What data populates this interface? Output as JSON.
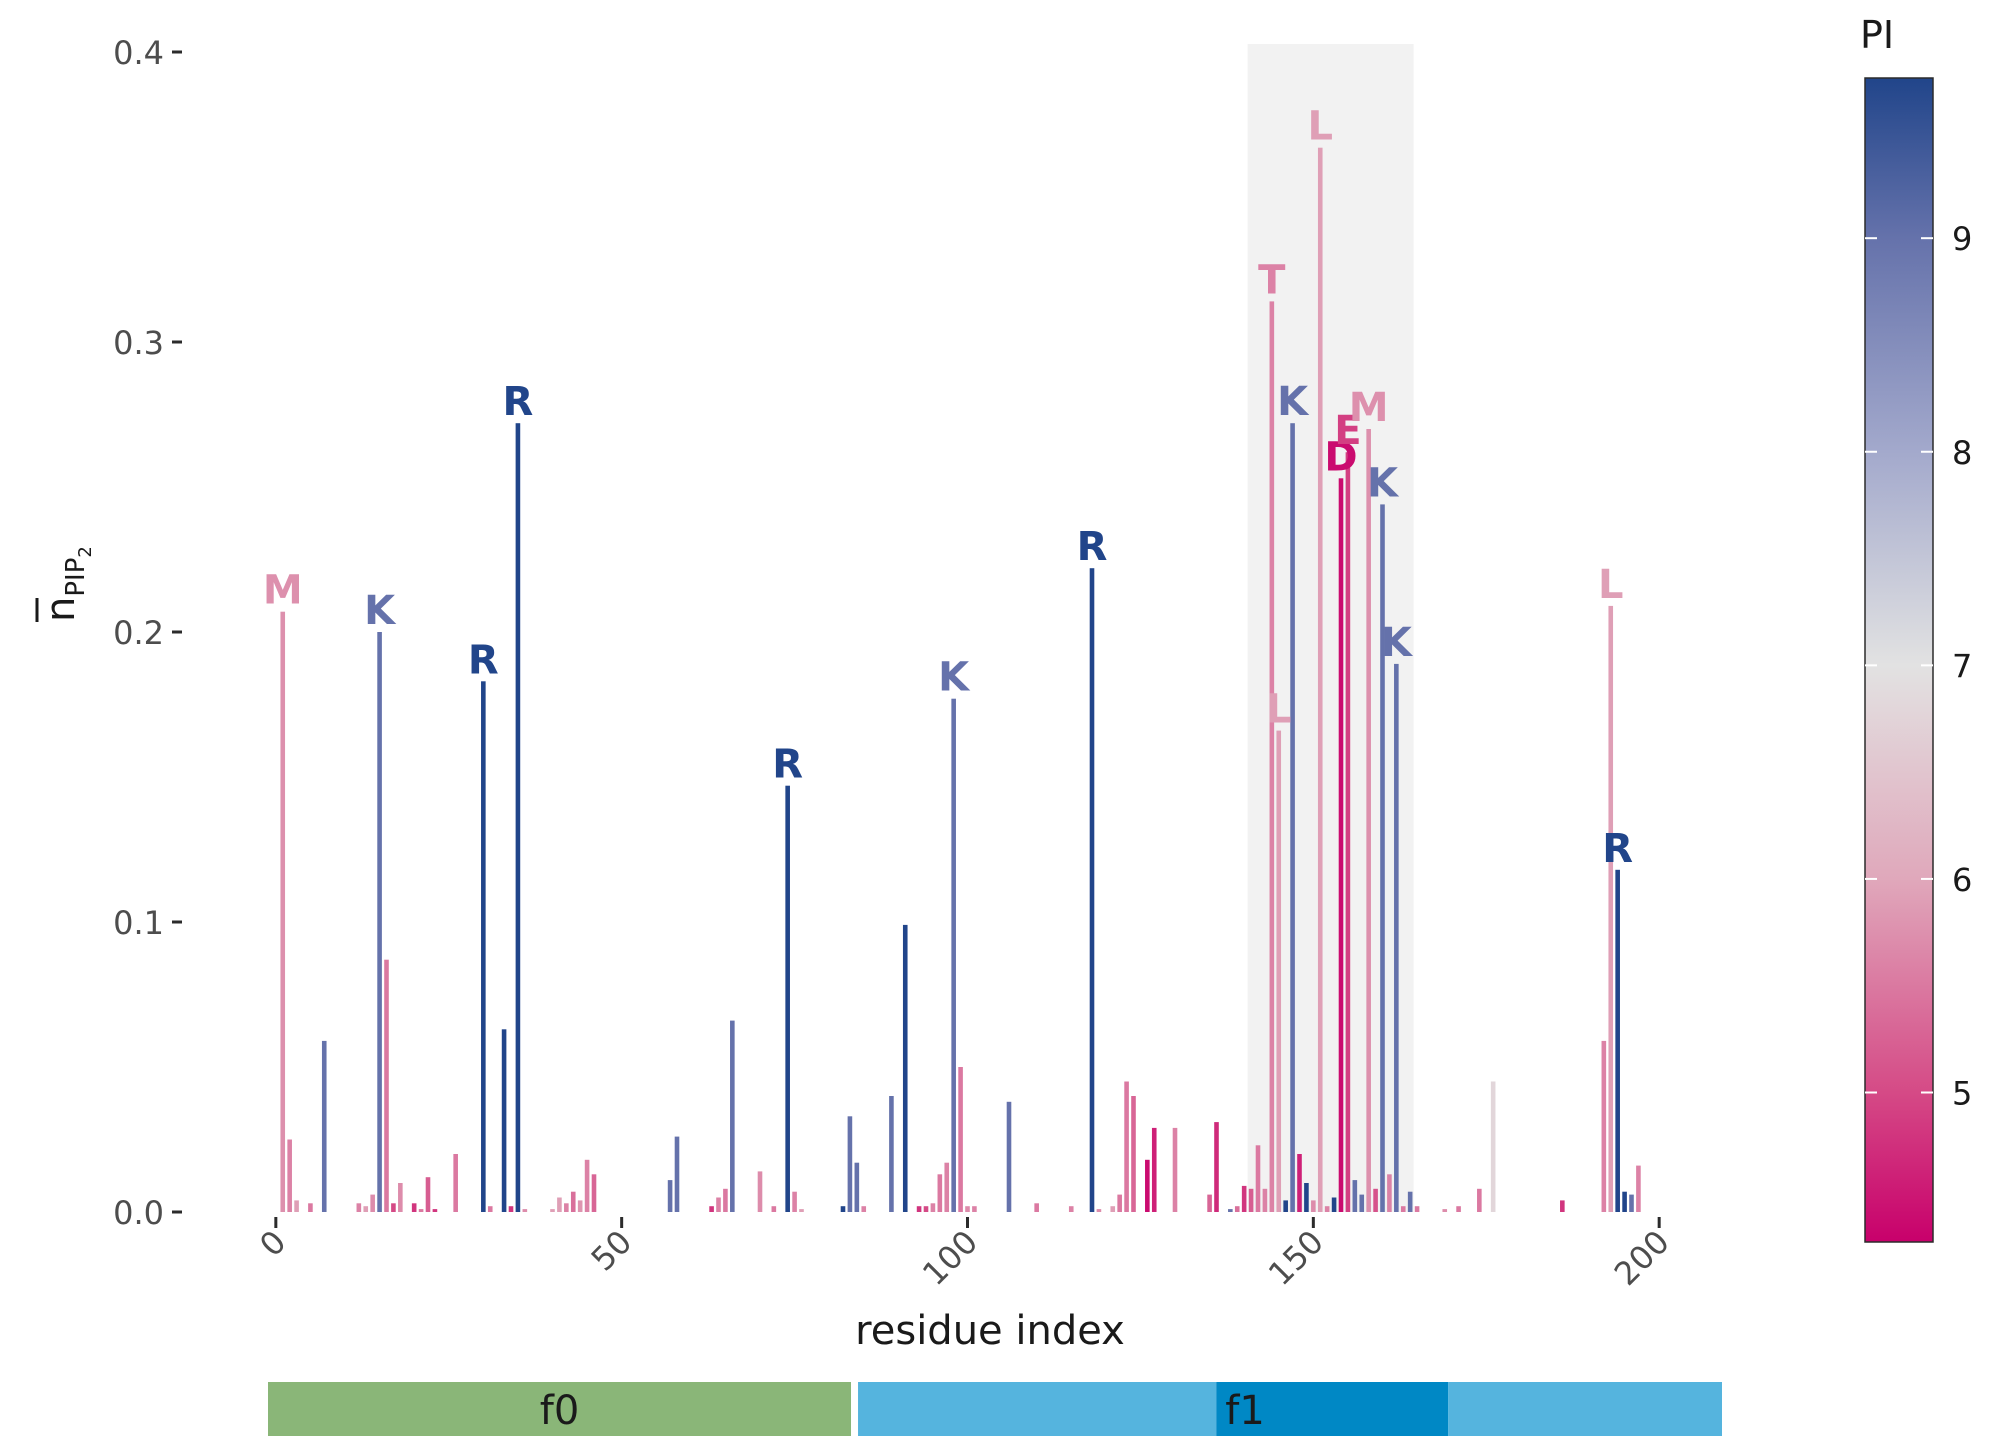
{
  "chart_data": {
    "type": "bar",
    "xlabel": "residue index",
    "ylabel_main": "n",
    "ylabel_sub1": "PIP",
    "ylabel_sub2": "2",
    "xlim": [
      -2,
      202
    ],
    "ylim": [
      0,
      0.4
    ],
    "xticks": [
      0,
      50,
      100,
      150,
      200
    ],
    "yticks": [
      0.0,
      0.1,
      0.2,
      0.3,
      0.4
    ],
    "ytick_labels": [
      "0.0",
      "0.1",
      "0.2",
      "0.3",
      "0.4"
    ],
    "highlight_region": [
      140.5,
      164.5
    ],
    "colorbar": {
      "title": "PI",
      "min": 4.3,
      "max": 9.75,
      "ticks": [
        5,
        6,
        7,
        8,
        9
      ],
      "tick_labels": [
        "5",
        "6",
        "7",
        "8",
        "9"
      ],
      "stops": [
        {
          "v": 4.3,
          "color": "#c8006b"
        },
        {
          "v": 5.0,
          "color": "#d54a86"
        },
        {
          "v": 6.0,
          "color": "#e0a8bb"
        },
        {
          "v": 7.0,
          "color": "#e2e2e2"
        },
        {
          "v": 8.0,
          "color": "#a3a9cc"
        },
        {
          "v": 9.0,
          "color": "#6572ab"
        },
        {
          "v": 9.75,
          "color": "#21458a"
        }
      ]
    },
    "bars": [
      {
        "x": 1,
        "y": 0.207,
        "pi": 5.74,
        "label": "M"
      },
      {
        "x": 2,
        "y": 0.025,
        "pi": 5.6
      },
      {
        "x": 3,
        "y": 0.004,
        "pi": 5.9
      },
      {
        "x": 5,
        "y": 0.003,
        "pi": 5.5
      },
      {
        "x": 7,
        "y": 0.059,
        "pi": 9.0
      },
      {
        "x": 12,
        "y": 0.003,
        "pi": 5.6
      },
      {
        "x": 13,
        "y": 0.002,
        "pi": 5.9
      },
      {
        "x": 14,
        "y": 0.006,
        "pi": 5.7
      },
      {
        "x": 15,
        "y": 0.2,
        "pi": 9.0,
        "label": "K"
      },
      {
        "x": 16,
        "y": 0.087,
        "pi": 5.5
      },
      {
        "x": 17,
        "y": 0.003,
        "pi": 5.0
      },
      {
        "x": 18,
        "y": 0.01,
        "pi": 5.7
      },
      {
        "x": 20,
        "y": 0.003,
        "pi": 4.8
      },
      {
        "x": 21,
        "y": 0.001,
        "pi": 5.5
      },
      {
        "x": 22,
        "y": 0.012,
        "pi": 5.2
      },
      {
        "x": 23,
        "y": 0.001,
        "pi": 4.8
      },
      {
        "x": 26,
        "y": 0.02,
        "pi": 5.5
      },
      {
        "x": 30,
        "y": 0.183,
        "pi": 9.75,
        "label": "R"
      },
      {
        "x": 31,
        "y": 0.002,
        "pi": 5.5
      },
      {
        "x": 33,
        "y": 0.063,
        "pi": 9.75
      },
      {
        "x": 34,
        "y": 0.002,
        "pi": 4.8
      },
      {
        "x": 35,
        "y": 0.272,
        "pi": 9.75,
        "label": "R"
      },
      {
        "x": 36,
        "y": 0.001,
        "pi": 5.7
      },
      {
        "x": 40,
        "y": 0.001,
        "pi": 5.9
      },
      {
        "x": 41,
        "y": 0.005,
        "pi": 5.9
      },
      {
        "x": 42,
        "y": 0.003,
        "pi": 5.6
      },
      {
        "x": 43,
        "y": 0.007,
        "pi": 5.4
      },
      {
        "x": 44,
        "y": 0.004,
        "pi": 5.8
      },
      {
        "x": 45,
        "y": 0.018,
        "pi": 5.6
      },
      {
        "x": 46,
        "y": 0.013,
        "pi": 5.3
      },
      {
        "x": 57,
        "y": 0.011,
        "pi": 9.0
      },
      {
        "x": 58,
        "y": 0.026,
        "pi": 9.0
      },
      {
        "x": 66,
        "y": 0.066,
        "pi": 9.0
      },
      {
        "x": 63,
        "y": 0.002,
        "pi": 4.8
      },
      {
        "x": 64,
        "y": 0.005,
        "pi": 5.6
      },
      {
        "x": 65,
        "y": 0.008,
        "pi": 5.5
      },
      {
        "x": 70,
        "y": 0.014,
        "pi": 5.7
      },
      {
        "x": 72,
        "y": 0.002,
        "pi": 5.5
      },
      {
        "x": 74,
        "y": 0.147,
        "pi": 9.75,
        "label": "R"
      },
      {
        "x": 75,
        "y": 0.007,
        "pi": 5.6
      },
      {
        "x": 76,
        "y": 0.001,
        "pi": 5.9
      },
      {
        "x": 82,
        "y": 0.002,
        "pi": 9.75
      },
      {
        "x": 83,
        "y": 0.033,
        "pi": 9.0
      },
      {
        "x": 84,
        "y": 0.017,
        "pi": 9.0
      },
      {
        "x": 85,
        "y": 0.002,
        "pi": 5.6
      },
      {
        "x": 89,
        "y": 0.04,
        "pi": 9.0
      },
      {
        "x": 91,
        "y": 0.099,
        "pi": 9.75
      },
      {
        "x": 93,
        "y": 0.002,
        "pi": 4.8
      },
      {
        "x": 94,
        "y": 0.002,
        "pi": 5.0
      },
      {
        "x": 95,
        "y": 0.003,
        "pi": 5.6
      },
      {
        "x": 96,
        "y": 0.013,
        "pi": 5.5
      },
      {
        "x": 97,
        "y": 0.017,
        "pi": 5.6
      },
      {
        "x": 98,
        "y": 0.177,
        "pi": 9.0,
        "label": "K"
      },
      {
        "x": 99,
        "y": 0.05,
        "pi": 5.5
      },
      {
        "x": 100,
        "y": 0.002,
        "pi": 5.7
      },
      {
        "x": 101,
        "y": 0.002,
        "pi": 5.6
      },
      {
        "x": 106,
        "y": 0.038,
        "pi": 9.0
      },
      {
        "x": 110,
        "y": 0.003,
        "pi": 5.5
      },
      {
        "x": 115,
        "y": 0.002,
        "pi": 5.6
      },
      {
        "x": 118,
        "y": 0.222,
        "pi": 9.75,
        "label": "R"
      },
      {
        "x": 119,
        "y": 0.001,
        "pi": 5.7
      },
      {
        "x": 121,
        "y": 0.002,
        "pi": 5.9
      },
      {
        "x": 122,
        "y": 0.006,
        "pi": 5.5
      },
      {
        "x": 123,
        "y": 0.045,
        "pi": 5.5
      },
      {
        "x": 124,
        "y": 0.04,
        "pi": 5.3
      },
      {
        "x": 126,
        "y": 0.018,
        "pi": 4.4
      },
      {
        "x": 127,
        "y": 0.029,
        "pi": 4.6
      },
      {
        "x": 130,
        "y": 0.029,
        "pi": 5.6
      },
      {
        "x": 135,
        "y": 0.006,
        "pi": 5.3
      },
      {
        "x": 136,
        "y": 0.031,
        "pi": 4.7
      },
      {
        "x": 138,
        "y": 0.001,
        "pi": 9.0
      },
      {
        "x": 139,
        "y": 0.002,
        "pi": 5.4
      },
      {
        "x": 140,
        "y": 0.009,
        "pi": 4.8
      },
      {
        "x": 141,
        "y": 0.008,
        "pi": 5.2
      },
      {
        "x": 142,
        "y": 0.023,
        "pi": 5.5
      },
      {
        "x": 143,
        "y": 0.008,
        "pi": 5.6
      },
      {
        "x": 144,
        "y": 0.314,
        "pi": 5.6,
        "label": "T"
      },
      {
        "x": 145,
        "y": 0.166,
        "pi": 5.9,
        "label": "L"
      },
      {
        "x": 146,
        "y": 0.004,
        "pi": 9.75
      },
      {
        "x": 147,
        "y": 0.272,
        "pi": 9.0,
        "label": "K"
      },
      {
        "x": 148,
        "y": 0.02,
        "pi": 4.6
      },
      {
        "x": 149,
        "y": 0.01,
        "pi": 9.75
      },
      {
        "x": 150,
        "y": 0.004,
        "pi": 5.7
      },
      {
        "x": 151,
        "y": 0.367,
        "pi": 5.9,
        "label": "L"
      },
      {
        "x": 152,
        "y": 0.002,
        "pi": 5.6
      },
      {
        "x": 153,
        "y": 0.005,
        "pi": 9.75
      },
      {
        "x": 154,
        "y": 0.253,
        "pi": 4.4,
        "label": "D"
      },
      {
        "x": 155,
        "y": 0.262,
        "pi": 4.9,
        "label": "E"
      },
      {
        "x": 156,
        "y": 0.011,
        "pi": 9.0
      },
      {
        "x": 157,
        "y": 0.006,
        "pi": 9.0
      },
      {
        "x": 158,
        "y": 0.27,
        "pi": 5.74,
        "label": "M"
      },
      {
        "x": 159,
        "y": 0.008,
        "pi": 5.1
      },
      {
        "x": 160,
        "y": 0.244,
        "pi": 9.0,
        "label": "K"
      },
      {
        "x": 161,
        "y": 0.013,
        "pi": 5.6
      },
      {
        "x": 162,
        "y": 0.189,
        "pi": 9.0,
        "label": "K"
      },
      {
        "x": 163,
        "y": 0.002,
        "pi": 5.5
      },
      {
        "x": 164,
        "y": 0.007,
        "pi": 9.0
      },
      {
        "x": 165,
        "y": 0.002,
        "pi": 5.5
      },
      {
        "x": 169,
        "y": 0.001,
        "pi": 5.7
      },
      {
        "x": 171,
        "y": 0.002,
        "pi": 5.5
      },
      {
        "x": 174,
        "y": 0.008,
        "pi": 5.5
      },
      {
        "x": 176,
        "y": 0.045,
        "pi": 6.8
      },
      {
        "x": 186,
        "y": 0.004,
        "pi": 4.8
      },
      {
        "x": 192,
        "y": 0.059,
        "pi": 5.6
      },
      {
        "x": 193,
        "y": 0.209,
        "pi": 5.9,
        "label": "L"
      },
      {
        "x": 194,
        "y": 0.118,
        "pi": 9.75,
        "label": "R"
      },
      {
        "x": 195,
        "y": 0.007,
        "pi": 9.75
      },
      {
        "x": 196,
        "y": 0.006,
        "pi": 9.0
      },
      {
        "x": 197,
        "y": 0.016,
        "pi": 5.6
      }
    ],
    "tracks": [
      {
        "name": "f0",
        "segments": [
          {
            "from": 0,
            "to": 83,
            "color": "#8ab678"
          }
        ]
      },
      {
        "name": "f1",
        "segments": [
          {
            "from": 84,
            "to": 135,
            "color": "#55b4de"
          },
          {
            "from": 135,
            "to": 168,
            "color": "#0088c5"
          },
          {
            "from": 168,
            "to": 207,
            "color": "#55b4de"
          }
        ]
      }
    ]
  }
}
